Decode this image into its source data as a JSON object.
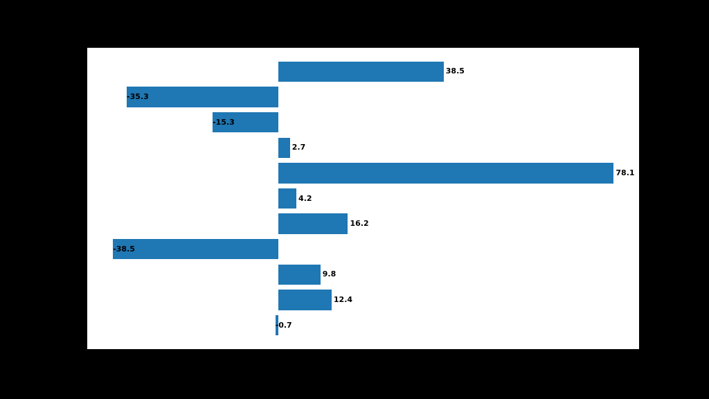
{
  "figure": {
    "background_color": "#000000",
    "axes_background_color": "#ffffff"
  },
  "chart_data": {
    "type": "bar",
    "orientation": "horizontal",
    "title": "",
    "xlabel": "",
    "ylabel": "",
    "values": [
      38.5,
      -35.3,
      -15.3,
      2.7,
      78.1,
      4.2,
      16.2,
      -38.5,
      9.8,
      12.4,
      -0.7
    ],
    "data_labels": [
      "38.5",
      "-35.3",
      "-15.3",
      "2.7",
      "78.1",
      "4.2",
      "16.2",
      "-38.5",
      "9.8",
      "12.4",
      "-0.7"
    ],
    "xlim": [
      -44.5,
      84.0
    ],
    "bar_color": "#1f77b4",
    "label_color": "#000000",
    "grid": false,
    "legend": null,
    "axes_visible": false,
    "bar_width_fraction": 0.8
  }
}
